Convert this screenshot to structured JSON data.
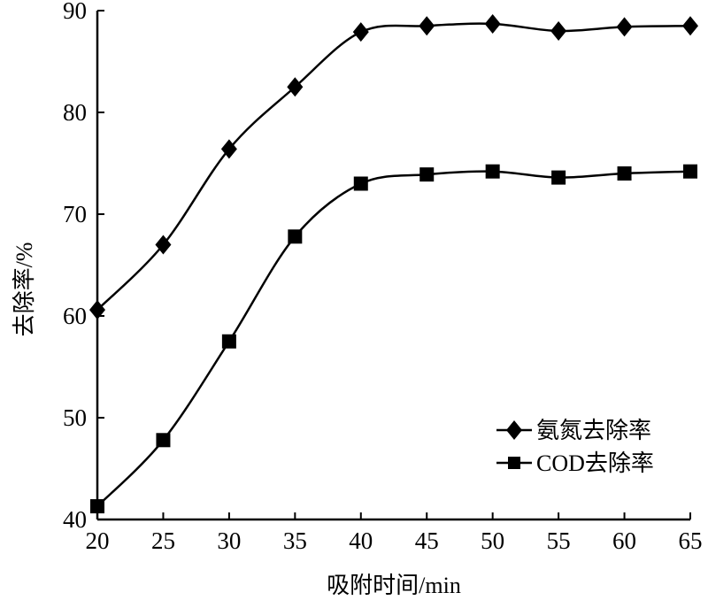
{
  "chart_data": {
    "type": "line",
    "xlabel": "吸附时间/min",
    "ylabel": "去除率/%",
    "x": [
      20,
      25,
      30,
      35,
      40,
      45,
      50,
      55,
      60,
      65
    ],
    "xlim": [
      20,
      65
    ],
    "ylim": [
      40,
      90
    ],
    "xticks": [
      "20",
      "25",
      "30",
      "35",
      "40",
      "45",
      "50",
      "55",
      "60",
      "65"
    ],
    "yticks": [
      "40",
      "50",
      "60",
      "70",
      "80",
      "90"
    ],
    "grid": false,
    "legend_position": "bottom-right",
    "series": [
      {
        "name": "氨氮去除率",
        "marker": "diamond",
        "values": [
          60.6,
          67.0,
          76.4,
          82.5,
          87.9,
          88.5,
          88.7,
          88.0,
          88.4,
          88.5
        ]
      },
      {
        "name": "COD去除率",
        "marker": "square",
        "values": [
          41.3,
          47.8,
          57.5,
          67.8,
          73.0,
          73.9,
          74.2,
          73.6,
          74.0,
          74.2
        ]
      }
    ]
  }
}
